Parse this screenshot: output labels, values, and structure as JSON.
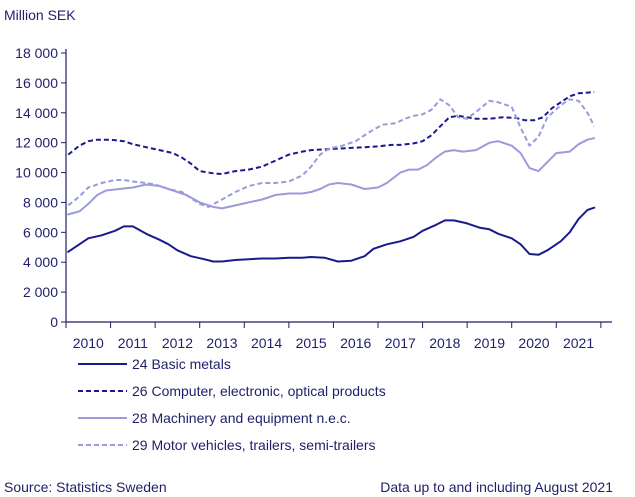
{
  "chart_data": {
    "type": "line",
    "unit_label": "Million SEK",
    "ylim": [
      0,
      18000
    ],
    "xlim": [
      2009.5,
      2021.75
    ],
    "y_ticks": [
      {
        "value": 0,
        "label": "0"
      },
      {
        "value": 2000,
        "label": "2 000"
      },
      {
        "value": 4000,
        "label": "4 000"
      },
      {
        "value": 6000,
        "label": "6 000"
      },
      {
        "value": 8000,
        "label": "8 000"
      },
      {
        "value": 10000,
        "label": "10 000"
      },
      {
        "value": 12000,
        "label": "12 000"
      },
      {
        "value": 14000,
        "label": "14 000"
      },
      {
        "value": 16000,
        "label": "16 000"
      },
      {
        "value": 18000,
        "label": "18 000"
      }
    ],
    "x_ticks": [
      {
        "value": 2010,
        "label": "2010"
      },
      {
        "value": 2011,
        "label": "2011"
      },
      {
        "value": 2012,
        "label": "2012"
      },
      {
        "value": 2013,
        "label": "2013"
      },
      {
        "value": 2014,
        "label": "2014"
      },
      {
        "value": 2015,
        "label": "2015"
      },
      {
        "value": 2016,
        "label": "2016"
      },
      {
        "value": 2017,
        "label": "2017"
      },
      {
        "value": 2018,
        "label": "2018"
      },
      {
        "value": 2019,
        "label": "2019"
      },
      {
        "value": 2020,
        "label": "2020"
      },
      {
        "value": 2021,
        "label": "2021"
      }
    ],
    "grid": false,
    "legend_position": "bottom",
    "series": [
      {
        "name": "24 Basic metals",
        "color": "#1a1a8c",
        "style": "solid",
        "points": [
          [
            2009.55,
            4700
          ],
          [
            2009.8,
            5200
          ],
          [
            2010.0,
            5600
          ],
          [
            2010.3,
            5800
          ],
          [
            2010.6,
            6100
          ],
          [
            2010.8,
            6400
          ],
          [
            2011.0,
            6400
          ],
          [
            2011.3,
            5900
          ],
          [
            2011.6,
            5500
          ],
          [
            2011.8,
            5200
          ],
          [
            2012.0,
            4800
          ],
          [
            2012.3,
            4400
          ],
          [
            2012.6,
            4200
          ],
          [
            2012.8,
            4050
          ],
          [
            2013.0,
            4050
          ],
          [
            2013.3,
            4150
          ],
          [
            2013.6,
            4200
          ],
          [
            2013.9,
            4250
          ],
          [
            2014.2,
            4250
          ],
          [
            2014.5,
            4300
          ],
          [
            2014.8,
            4300
          ],
          [
            2015.0,
            4350
          ],
          [
            2015.3,
            4300
          ],
          [
            2015.6,
            4050
          ],
          [
            2015.9,
            4100
          ],
          [
            2016.2,
            4400
          ],
          [
            2016.4,
            4900
          ],
          [
            2016.7,
            5200
          ],
          [
            2017.0,
            5400
          ],
          [
            2017.3,
            5700
          ],
          [
            2017.5,
            6100
          ],
          [
            2017.8,
            6500
          ],
          [
            2018.0,
            6800
          ],
          [
            2018.2,
            6800
          ],
          [
            2018.5,
            6600
          ],
          [
            2018.8,
            6300
          ],
          [
            2019.0,
            6200
          ],
          [
            2019.2,
            5900
          ],
          [
            2019.5,
            5600
          ],
          [
            2019.7,
            5200
          ],
          [
            2019.9,
            4550
          ],
          [
            2020.1,
            4500
          ],
          [
            2020.3,
            4800
          ],
          [
            2020.6,
            5400
          ],
          [
            2020.8,
            6000
          ],
          [
            2021.0,
            6900
          ],
          [
            2021.2,
            7500
          ],
          [
            2021.35,
            7650
          ]
        ]
      },
      {
        "name": "26 Computer, electronic, optical products",
        "color": "#1a1a8c",
        "style": "dashed",
        "points": [
          [
            2009.55,
            11200
          ],
          [
            2009.8,
            11800
          ],
          [
            2010.0,
            12100
          ],
          [
            2010.2,
            12200
          ],
          [
            2010.5,
            12200
          ],
          [
            2010.8,
            12100
          ],
          [
            2011.0,
            11900
          ],
          [
            2011.3,
            11700
          ],
          [
            2011.6,
            11500
          ],
          [
            2011.9,
            11300
          ],
          [
            2012.1,
            11000
          ],
          [
            2012.3,
            10600
          ],
          [
            2012.5,
            10100
          ],
          [
            2012.8,
            9950
          ],
          [
            2013.0,
            9900
          ],
          [
            2013.3,
            10100
          ],
          [
            2013.6,
            10200
          ],
          [
            2013.9,
            10400
          ],
          [
            2014.2,
            10800
          ],
          [
            2014.5,
            11200
          ],
          [
            2014.8,
            11400
          ],
          [
            2015.0,
            11500
          ],
          [
            2015.3,
            11550
          ],
          [
            2015.6,
            11600
          ],
          [
            2015.9,
            11650
          ],
          [
            2016.2,
            11700
          ],
          [
            2016.5,
            11750
          ],
          [
            2016.8,
            11850
          ],
          [
            2017.0,
            11850
          ],
          [
            2017.3,
            11950
          ],
          [
            2017.5,
            12100
          ],
          [
            2017.7,
            12500
          ],
          [
            2017.9,
            13100
          ],
          [
            2018.1,
            13700
          ],
          [
            2018.3,
            13800
          ],
          [
            2018.5,
            13700
          ],
          [
            2018.7,
            13600
          ],
          [
            2019.0,
            13600
          ],
          [
            2019.3,
            13700
          ],
          [
            2019.6,
            13650
          ],
          [
            2019.8,
            13500
          ],
          [
            2020.0,
            13500
          ],
          [
            2020.2,
            13700
          ],
          [
            2020.4,
            14300
          ],
          [
            2020.6,
            14700
          ],
          [
            2020.8,
            15100
          ],
          [
            2021.0,
            15300
          ],
          [
            2021.2,
            15350
          ],
          [
            2021.35,
            15400
          ]
        ]
      },
      {
        "name": "28 Machinery and equipment n.e.c.",
        "color": "#9b9bdc",
        "style": "solid",
        "points": [
          [
            2009.55,
            7200
          ],
          [
            2009.8,
            7400
          ],
          [
            2010.0,
            7900
          ],
          [
            2010.2,
            8500
          ],
          [
            2010.4,
            8800
          ],
          [
            2010.7,
            8900
          ],
          [
            2011.0,
            9000
          ],
          [
            2011.3,
            9200
          ],
          [
            2011.6,
            9100
          ],
          [
            2011.9,
            8800
          ],
          [
            2012.2,
            8500
          ],
          [
            2012.5,
            8000
          ],
          [
            2012.8,
            7700
          ],
          [
            2013.0,
            7600
          ],
          [
            2013.3,
            7800
          ],
          [
            2013.6,
            8000
          ],
          [
            2013.9,
            8200
          ],
          [
            2014.2,
            8500
          ],
          [
            2014.5,
            8600
          ],
          [
            2014.8,
            8600
          ],
          [
            2015.0,
            8700
          ],
          [
            2015.2,
            8900
          ],
          [
            2015.4,
            9200
          ],
          [
            2015.6,
            9300
          ],
          [
            2015.9,
            9200
          ],
          [
            2016.2,
            8900
          ],
          [
            2016.5,
            9000
          ],
          [
            2016.7,
            9300
          ],
          [
            2017.0,
            10000
          ],
          [
            2017.2,
            10200
          ],
          [
            2017.4,
            10200
          ],
          [
            2017.6,
            10500
          ],
          [
            2017.8,
            11000
          ],
          [
            2018.0,
            11400
          ],
          [
            2018.2,
            11500
          ],
          [
            2018.4,
            11400
          ],
          [
            2018.7,
            11500
          ],
          [
            2019.0,
            12000
          ],
          [
            2019.2,
            12100
          ],
          [
            2019.5,
            11800
          ],
          [
            2019.7,
            11300
          ],
          [
            2019.9,
            10300
          ],
          [
            2020.1,
            10100
          ],
          [
            2020.3,
            10700
          ],
          [
            2020.5,
            11300
          ],
          [
            2020.8,
            11400
          ],
          [
            2021.0,
            11900
          ],
          [
            2021.2,
            12200
          ],
          [
            2021.35,
            12300
          ]
        ]
      },
      {
        "name": "29 Motor vehicles, trailers, semi-trailers",
        "color": "#9b9bdc",
        "style": "dashed",
        "points": [
          [
            2009.55,
            7800
          ],
          [
            2009.8,
            8400
          ],
          [
            2010.0,
            9000
          ],
          [
            2010.3,
            9300
          ],
          [
            2010.6,
            9500
          ],
          [
            2010.8,
            9500
          ],
          [
            2011.0,
            9400
          ],
          [
            2011.3,
            9300
          ],
          [
            2011.5,
            9200
          ],
          [
            2011.8,
            8900
          ],
          [
            2012.1,
            8700
          ],
          [
            2012.3,
            8300
          ],
          [
            2012.5,
            7900
          ],
          [
            2012.7,
            7700
          ],
          [
            2013.0,
            8200
          ],
          [
            2013.3,
            8700
          ],
          [
            2013.6,
            9100
          ],
          [
            2013.9,
            9300
          ],
          [
            2014.2,
            9300
          ],
          [
            2014.5,
            9400
          ],
          [
            2014.8,
            9800
          ],
          [
            2015.0,
            10400
          ],
          [
            2015.2,
            11200
          ],
          [
            2015.4,
            11600
          ],
          [
            2015.7,
            11800
          ],
          [
            2016.0,
            12100
          ],
          [
            2016.3,
            12700
          ],
          [
            2016.6,
            13200
          ],
          [
            2016.9,
            13300
          ],
          [
            2017.1,
            13600
          ],
          [
            2017.3,
            13800
          ],
          [
            2017.5,
            13900
          ],
          [
            2017.7,
            14200
          ],
          [
            2017.9,
            14900
          ],
          [
            2018.1,
            14500
          ],
          [
            2018.3,
            13700
          ],
          [
            2018.5,
            13600
          ],
          [
            2018.8,
            14300
          ],
          [
            2019.0,
            14800
          ],
          [
            2019.2,
            14700
          ],
          [
            2019.5,
            14400
          ],
          [
            2019.7,
            13000
          ],
          [
            2019.9,
            11800
          ],
          [
            2020.1,
            12400
          ],
          [
            2020.3,
            13700
          ],
          [
            2020.6,
            14500
          ],
          [
            2020.8,
            14900
          ],
          [
            2021.0,
            14800
          ],
          [
            2021.2,
            14000
          ],
          [
            2021.35,
            13100
          ]
        ]
      }
    ],
    "source_text": "Source: Statistics Sweden",
    "note_text": "Data up to and including August 2021"
  }
}
